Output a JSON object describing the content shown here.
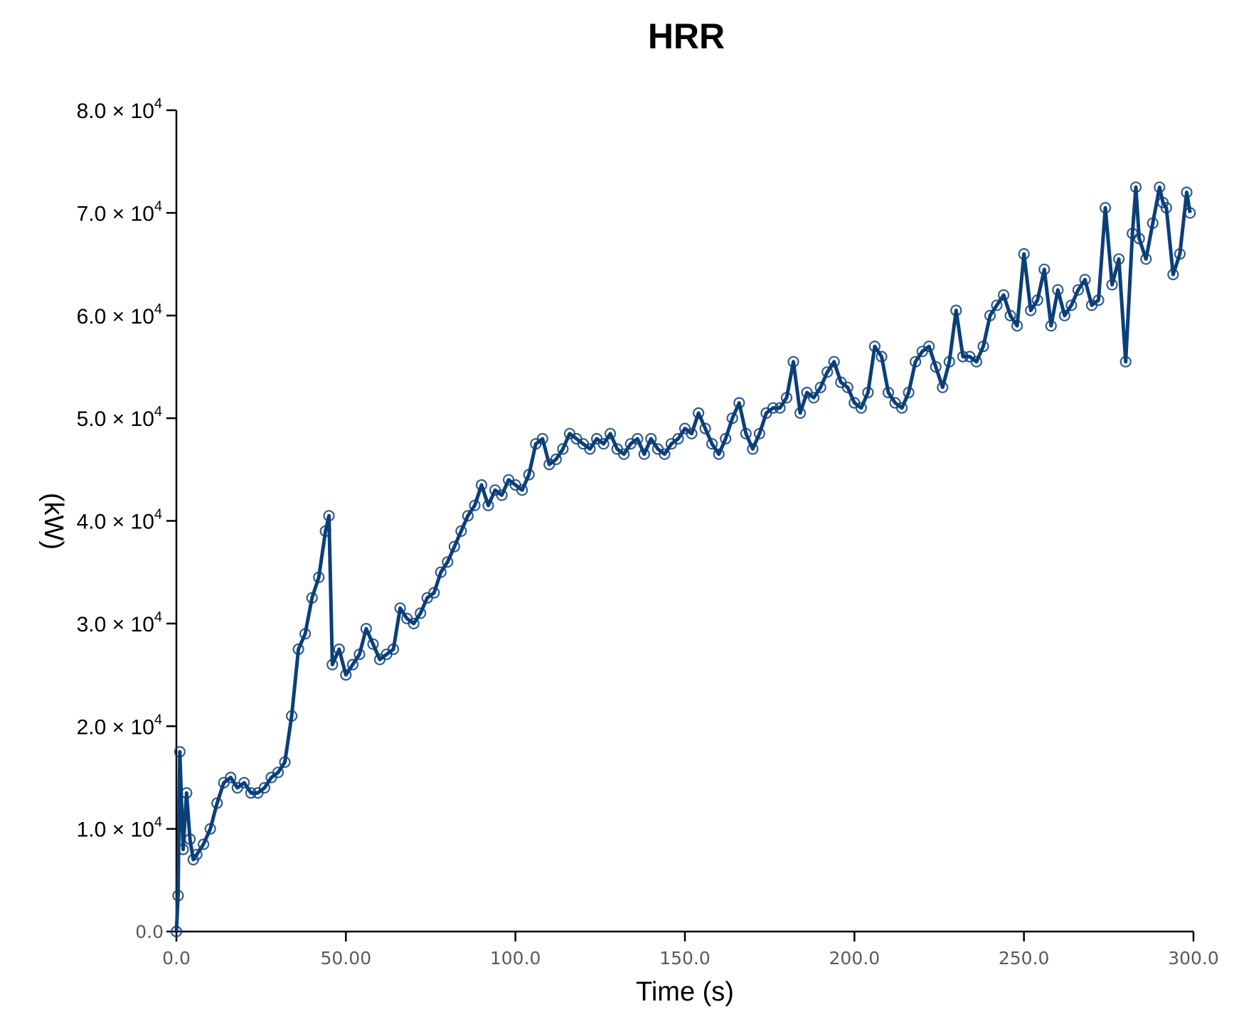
{
  "chart_data": {
    "type": "line",
    "title": "HRR",
    "xlabel": "Time (s)",
    "ylabel": "(kW)",
    "xlim": [
      0,
      300
    ],
    "ylim": [
      0,
      80000
    ],
    "x_tick_values": [
      0,
      50,
      100,
      150,
      200,
      250,
      300
    ],
    "x_tick_labels": [
      "0.0",
      "50.00",
      "100.0",
      "150.0",
      "200.0",
      "250.0",
      "300.0"
    ],
    "y_tick_values": [
      0,
      10000,
      20000,
      30000,
      40000,
      50000,
      60000,
      70000,
      80000
    ],
    "y_tick_mantissas": [
      "0.0",
      "1.0",
      "2.0",
      "3.0",
      "4.0",
      "5.0",
      "6.0",
      "7.0",
      "8.0"
    ],
    "y_tick_times": "×",
    "y_tick_base": "10",
    "y_tick_exponent": "4",
    "grid": false,
    "marker": "open-circle",
    "series": [
      {
        "color": "#0b3f7a",
        "x": [
          0,
          0.5,
          1,
          2,
          3,
          4,
          5,
          6,
          8,
          10,
          12,
          14,
          16,
          18,
          20,
          22,
          24,
          26,
          28,
          30,
          32,
          34,
          36,
          38,
          40,
          42,
          44,
          45,
          46,
          48,
          50,
          52,
          54,
          56,
          58,
          60,
          62,
          64,
          66,
          68,
          70,
          72,
          74,
          76,
          78,
          80,
          82,
          84,
          86,
          88,
          90,
          92,
          94,
          96,
          98,
          100,
          102,
          104,
          106,
          108,
          110,
          112,
          114,
          116,
          118,
          120,
          122,
          124,
          126,
          128,
          130,
          132,
          134,
          136,
          138,
          140,
          142,
          144,
          146,
          148,
          150,
          152,
          154,
          156,
          158,
          160,
          162,
          164,
          166,
          168,
          170,
          172,
          174,
          176,
          178,
          180,
          182,
          184,
          186,
          188,
          190,
          192,
          194,
          196,
          198,
          200,
          202,
          204,
          206,
          208,
          210,
          212,
          214,
          216,
          218,
          220,
          222,
          224,
          226,
          228,
          230,
          232,
          234,
          236,
          238,
          240,
          242,
          244,
          246,
          248,
          250,
          252,
          254,
          256,
          258,
          260,
          262,
          264,
          266,
          268,
          270,
          272,
          274,
          276,
          278,
          280,
          282,
          283,
          284,
          286,
          288,
          290,
          291,
          292,
          294,
          296,
          298,
          299
        ],
        "y": [
          0,
          3500,
          17500,
          8000,
          13500,
          9000,
          7000,
          7500,
          8500,
          10000,
          12500,
          14500,
          15000,
          14000,
          14500,
          13500,
          13500,
          14000,
          15000,
          15500,
          16500,
          21000,
          27500,
          29000,
          32500,
          34500,
          39000,
          40500,
          26000,
          27500,
          25000,
          26000,
          27000,
          29500,
          28000,
          26500,
          27000,
          27500,
          31500,
          30500,
          30000,
          31000,
          32500,
          33000,
          35000,
          36000,
          37500,
          39000,
          40500,
          41500,
          43500,
          41500,
          43000,
          42500,
          44000,
          43500,
          43000,
          44500,
          47500,
          48000,
          45500,
          46000,
          47000,
          48500,
          48000,
          47500,
          47000,
          48000,
          47500,
          48500,
          47000,
          46500,
          47500,
          48000,
          46500,
          48000,
          47000,
          46500,
          47500,
          48000,
          49000,
          48500,
          50500,
          49000,
          47500,
          46500,
          48000,
          50000,
          51500,
          48500,
          47000,
          48500,
          50500,
          51000,
          51000,
          52000,
          55500,
          50500,
          52500,
          52000,
          53000,
          54500,
          55500,
          53500,
          53000,
          51500,
          51000,
          52500,
          57000,
          56000,
          52500,
          51500,
          51000,
          52500,
          55500,
          56500,
          57000,
          55000,
          53000,
          55500,
          60500,
          56000,
          56000,
          55500,
          57000,
          60000,
          61000,
          62000,
          60000,
          59000,
          66000,
          60500,
          61500,
          64500,
          59000,
          62500,
          60000,
          61000,
          62500,
          63500,
          61000,
          61500,
          70500,
          63000,
          65500,
          55500,
          68000,
          72500,
          67500,
          65500,
          69000,
          72500,
          71000,
          70500,
          64000,
          66000,
          72000,
          70000
        ]
      }
    ]
  }
}
